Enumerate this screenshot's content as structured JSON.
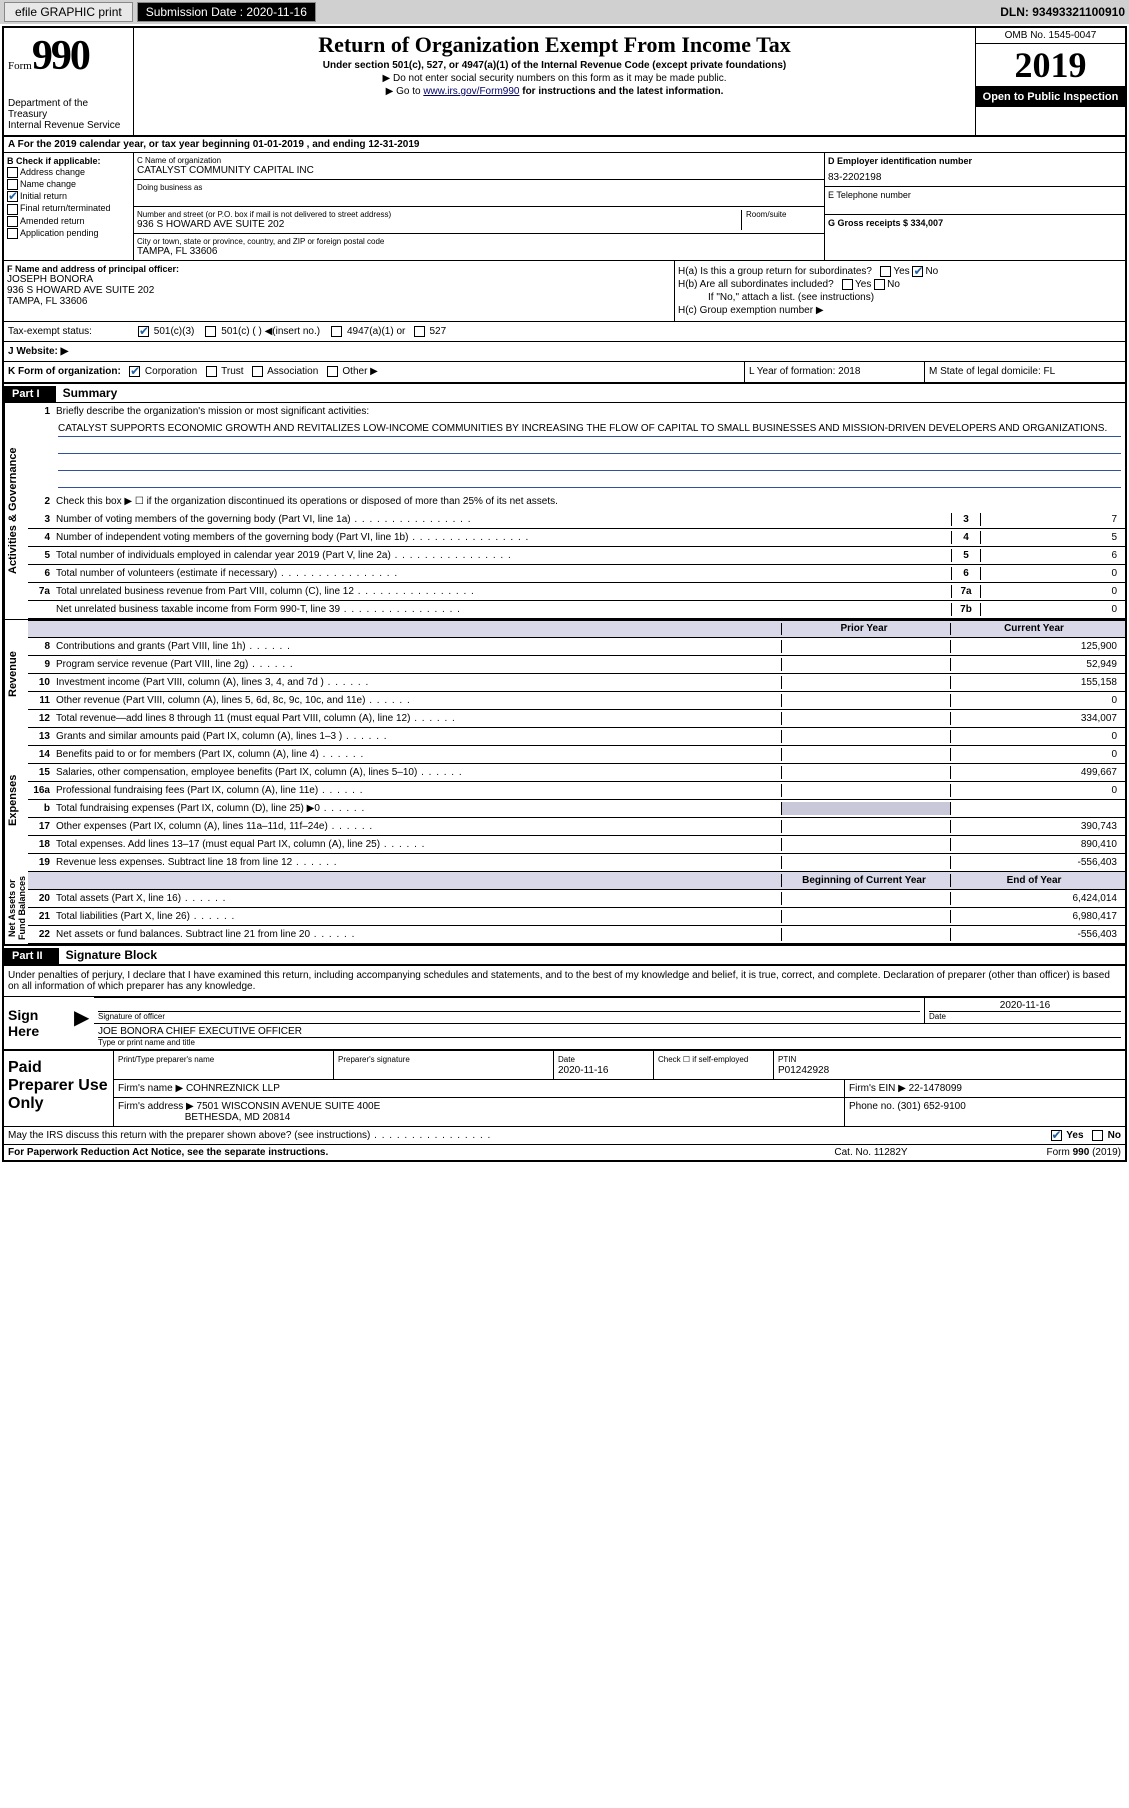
{
  "topbar": {
    "efile": "efile GRAPHIC print",
    "sub_label": "Submission Date : 2020-11-16",
    "dln": "DLN: 93493321100910"
  },
  "header": {
    "form_word": "Form",
    "form_num": "990",
    "dept": "Department of the Treasury\nInternal Revenue Service",
    "title": "Return of Organization Exempt From Income Tax",
    "subtitle": "Under section 501(c), 527, or 4947(a)(1) of the Internal Revenue Code (except private foundations)",
    "note1": "▶ Do not enter social security numbers on this form as it may be made public.",
    "note2_pre": "▶ Go to ",
    "note2_link": "www.irs.gov/Form990",
    "note2_post": " for instructions and the latest information.",
    "omb": "OMB No. 1545-0047",
    "year": "2019",
    "open": "Open to Public Inspection"
  },
  "periodA": "A For the 2019 calendar year, or tax year beginning 01-01-2019    , and ending 12-31-2019",
  "blockB": {
    "label": "B Check if applicable:",
    "address": "Address change",
    "name": "Name change",
    "initial": "Initial return",
    "final": "Final return/terminated",
    "amended": "Amended return",
    "app": "Application pending"
  },
  "blockC": {
    "name_label": "C Name of organization",
    "org_name": "CATALYST COMMUNITY CAPITAL INC",
    "dba_label": "Doing business as",
    "addr_label": "Number and street (or P.O. box if mail is not delivered to street address)",
    "room_label": "Room/suite",
    "street": "936 S HOWARD AVE SUITE 202",
    "city_label": "City or town, state or province, country, and ZIP or foreign postal code",
    "city": "TAMPA, FL  33606"
  },
  "blockD": {
    "label": "D Employer identification number",
    "ein": "83-2202198"
  },
  "blockE": {
    "label": "E Telephone number",
    "phone": ""
  },
  "blockG": {
    "label": "G Gross receipts $ 334,007"
  },
  "blockF": {
    "label": "F  Name and address of principal officer:",
    "name": "JOSEPH BONORA",
    "street": "936 S HOWARD AVE SUITE 202",
    "city": "TAMPA, FL  33606"
  },
  "blockH": {
    "ha": "H(a)  Is this a group return for subordinates?",
    "hb": "H(b)  Are all subordinates included?",
    "hb_note": "If \"No,\" attach a list. (see instructions)",
    "hc": "H(c)  Group exemption number ▶",
    "yes": "Yes",
    "no": "No"
  },
  "blockI": {
    "label": "Tax-exempt status:",
    "c3": "501(c)(3)",
    "c": "501(c) (  ) ◀(insert no.)",
    "a1": "4947(a)(1) or",
    "s527": "527"
  },
  "blockJ": {
    "label": "J   Website: ▶"
  },
  "blockK": {
    "label": "K Form of organization:",
    "corp": "Corporation",
    "trust": "Trust",
    "assoc": "Association",
    "other": "Other ▶"
  },
  "blockL": {
    "label": "L Year of formation: 2018"
  },
  "blockM": {
    "label": "M State of legal domicile: FL"
  },
  "part1": {
    "tag": "Part I",
    "title": "Summary",
    "q1": "Briefly describe the organization's mission or most significant activities:",
    "mission": "CATALYST SUPPORTS ECONOMIC GROWTH AND REVITALIZES LOW-INCOME COMMUNITIES BY INCREASING THE FLOW OF CAPITAL TO SMALL BUSINESSES AND MISSION-DRIVEN DEVELOPERS AND ORGANIZATIONS.",
    "q2": "Check this box ▶ ☐  if the organization discontinued its operations or disposed of more than 25% of its net assets.",
    "rows_ag": [
      {
        "n": "3",
        "d": "Number of voting members of the governing body (Part VI, line 1a)",
        "box": "3",
        "v": "7"
      },
      {
        "n": "4",
        "d": "Number of independent voting members of the governing body (Part VI, line 1b)",
        "box": "4",
        "v": "5"
      },
      {
        "n": "5",
        "d": "Total number of individuals employed in calendar year 2019 (Part V, line 2a)",
        "box": "5",
        "v": "6"
      },
      {
        "n": "6",
        "d": "Total number of volunteers (estimate if necessary)",
        "box": "6",
        "v": "0"
      },
      {
        "n": "7a",
        "d": "Total unrelated business revenue from Part VIII, column (C), line 12",
        "box": "7a",
        "v": "0"
      },
      {
        "n": "",
        "d": "Net unrelated business taxable income from Form 990-T, line 39",
        "box": "7b",
        "v": "0"
      }
    ],
    "prior_hdr": "Prior Year",
    "current_hdr": "Current Year",
    "rows_rev": [
      {
        "n": "8",
        "d": "Contributions and grants (Part VIII, line 1h)",
        "p": "",
        "c": "125,900"
      },
      {
        "n": "9",
        "d": "Program service revenue (Part VIII, line 2g)",
        "p": "",
        "c": "52,949"
      },
      {
        "n": "10",
        "d": "Investment income (Part VIII, column (A), lines 3, 4, and 7d )",
        "p": "",
        "c": "155,158"
      },
      {
        "n": "11",
        "d": "Other revenue (Part VIII, column (A), lines 5, 6d, 8c, 9c, 10c, and 11e)",
        "p": "",
        "c": "0"
      },
      {
        "n": "12",
        "d": "Total revenue—add lines 8 through 11 (must equal Part VIII, column (A), line 12)",
        "p": "",
        "c": "334,007"
      }
    ],
    "rows_exp": [
      {
        "n": "13",
        "d": "Grants and similar amounts paid (Part IX, column (A), lines 1–3 )",
        "p": "",
        "c": "0"
      },
      {
        "n": "14",
        "d": "Benefits paid to or for members (Part IX, column (A), line 4)",
        "p": "",
        "c": "0"
      },
      {
        "n": "15",
        "d": "Salaries, other compensation, employee benefits (Part IX, column (A), lines 5–10)",
        "p": "",
        "c": "499,667"
      },
      {
        "n": "16a",
        "d": "Professional fundraising fees (Part IX, column (A), line 11e)",
        "p": "",
        "c": "0"
      },
      {
        "n": "b",
        "d": "Total fundraising expenses (Part IX, column (D), line 25) ▶0",
        "p": "shaded",
        "c": "shaded"
      },
      {
        "n": "17",
        "d": "Other expenses (Part IX, column (A), lines 11a–11d, 11f–24e)",
        "p": "",
        "c": "390,743"
      },
      {
        "n": "18",
        "d": "Total expenses. Add lines 13–17 (must equal Part IX, column (A), line 25)",
        "p": "",
        "c": "890,410"
      },
      {
        "n": "19",
        "d": "Revenue less expenses. Subtract line 18 from line 12",
        "p": "",
        "c": "-556,403"
      }
    ],
    "bcy_hdr": "Beginning of Current Year",
    "eoy_hdr": "End of Year",
    "rows_na": [
      {
        "n": "20",
        "d": "Total assets (Part X, line 16)",
        "p": "",
        "c": "6,424,014"
      },
      {
        "n": "21",
        "d": "Total liabilities (Part X, line 26)",
        "p": "",
        "c": "6,980,417"
      },
      {
        "n": "22",
        "d": "Net assets or fund balances. Subtract line 21 from line 20",
        "p": "",
        "c": "-556,403"
      }
    ],
    "side_ag": "Activities & Governance",
    "side_rev": "Revenue",
    "side_exp": "Expenses",
    "side_na": "Net Assets or\nFund Balances"
  },
  "part2": {
    "tag": "Part II",
    "title": "Signature Block",
    "decl": "Under penalties of perjury, I declare that I have examined this return, including accompanying schedules and statements, and to the best of my knowledge and belief, it is true, correct, and complete. Declaration of preparer (other than officer) is based on all information of which preparer has any knowledge.",
    "sign_here": "Sign Here",
    "sig_officer": "Signature of officer",
    "date_l": "Date",
    "date_v": "2020-11-16",
    "name_title": "JOE BONORA  CHIEF EXECUTIVE OFFICER",
    "type_name": "Type or print name and title"
  },
  "paid": {
    "label": "Paid Preparer Use Only",
    "pt_name": "Print/Type preparer's name",
    "sig": "Preparer's signature",
    "date_l": "Date",
    "date_v": "2020-11-16",
    "check_se": "Check ☐ if self-employed",
    "ptin_l": "PTIN",
    "ptin_v": "P01242928",
    "firm_name_l": "Firm's name     ▶",
    "firm_name": "COHNREZNICK LLP",
    "firm_ein_l": "Firm's EIN ▶",
    "firm_ein": "22-1478099",
    "firm_addr_l": "Firm's address ▶",
    "firm_addr1": "7501 WISCONSIN AVENUE SUITE 400E",
    "firm_addr2": "BETHESDA, MD  20814",
    "phone_l": "Phone no.",
    "phone": "(301) 652-9100"
  },
  "discuss": "May the IRS discuss this return with the preparer shown above? (see instructions)",
  "footer": {
    "pra": "For Paperwork Reduction Act Notice, see the separate instructions.",
    "cat": "Cat. No. 11282Y",
    "form": "Form 990 (2019)"
  }
}
